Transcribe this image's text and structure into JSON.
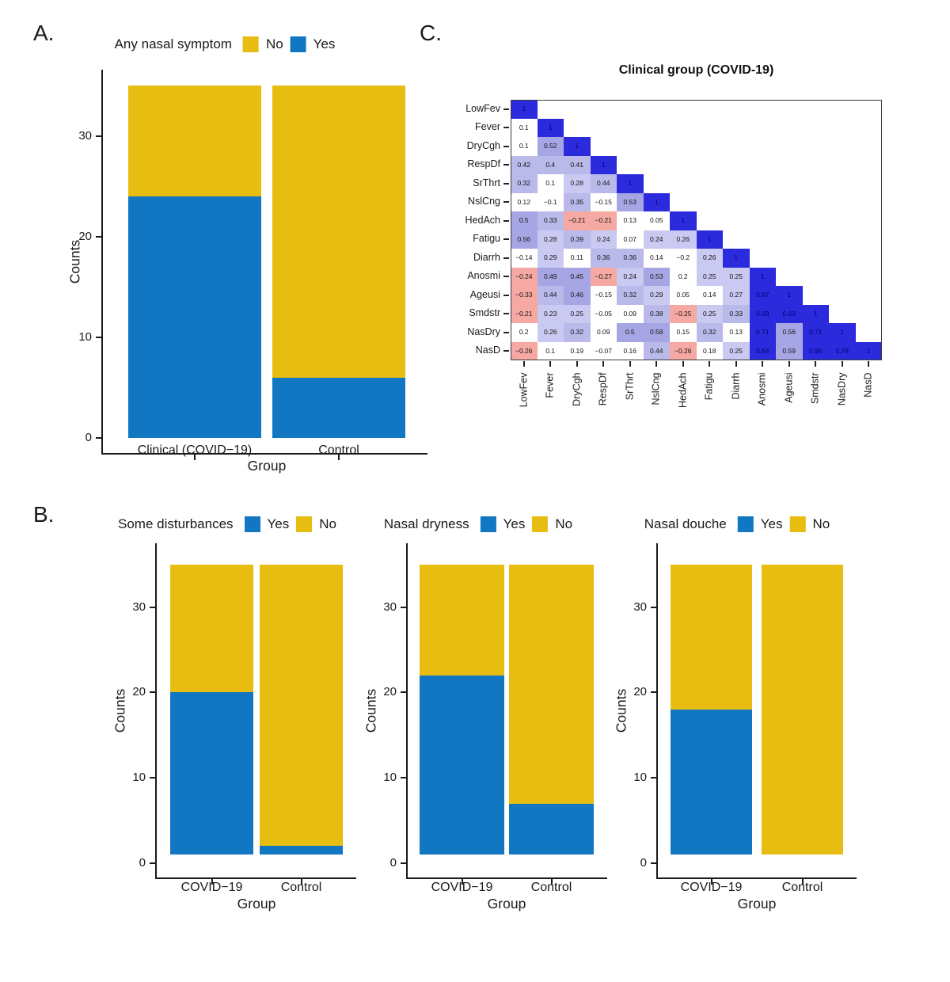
{
  "figure_background": "#ffffff",
  "colors": {
    "yes_blue": "#1277C3",
    "no_yellow": "#E7BD11"
  },
  "chart_data": [
    {
      "id": "panel_a",
      "panel_label": "A.",
      "type": "bar",
      "stacked": true,
      "legend_title": "Any nasal symptom",
      "legend": [
        {
          "label": "No",
          "color": "#E7BD11"
        },
        {
          "label": "Yes",
          "color": "#1277C3"
        }
      ],
      "xlabel": "Group",
      "ylabel": "Counts",
      "yticks": [
        0,
        10,
        20,
        30
      ],
      "ylim": [
        0,
        36.5
      ],
      "categories": [
        "Clinical (COVID−19)",
        "Control"
      ],
      "bars": [
        {
          "category": "Clinical (COVID−19)",
          "segments": [
            {
              "name": "Yes",
              "from": 0,
              "to": 24
            },
            {
              "name": "No",
              "from": 24,
              "to": 35
            }
          ]
        },
        {
          "category": "Control",
          "segments": [
            {
              "name": "Yes",
              "from": 0,
              "to": 6
            },
            {
              "name": "No",
              "from": 6,
              "to": 35
            }
          ]
        }
      ]
    },
    {
      "id": "panel_b1",
      "panel_label": "B.",
      "type": "bar",
      "stacked": true,
      "legend_title": "Some disturbances",
      "legend": [
        {
          "label": "Yes",
          "color": "#1277C3"
        },
        {
          "label": "No",
          "color": "#E7BD11"
        }
      ],
      "xlabel": "Group",
      "ylabel": "Counts",
      "yticks": [
        0,
        10,
        20,
        30
      ],
      "ylim": [
        0,
        36.5
      ],
      "categories": [
        "COVID−19",
        "Control"
      ],
      "bars": [
        {
          "category": "COVID−19",
          "segments": [
            {
              "name": "Yes",
              "from": 1,
              "to": 20
            },
            {
              "name": "No",
              "from": 20,
              "to": 35
            }
          ]
        },
        {
          "category": "Control",
          "segments": [
            {
              "name": "Yes",
              "from": 1,
              "to": 2
            },
            {
              "name": "No",
              "from": 2,
              "to": 35
            }
          ]
        }
      ]
    },
    {
      "id": "panel_b2",
      "panel_label": "",
      "type": "bar",
      "stacked": true,
      "legend_title": "Nasal dryness",
      "legend": [
        {
          "label": "Yes",
          "color": "#1277C3"
        },
        {
          "label": "No",
          "color": "#E7BD11"
        }
      ],
      "xlabel": "Group",
      "ylabel": "Counts",
      "yticks": [
        0,
        10,
        20,
        30
      ],
      "ylim": [
        0,
        36.5
      ],
      "categories": [
        "COVID−19",
        "Control"
      ],
      "bars": [
        {
          "category": "COVID−19",
          "segments": [
            {
              "name": "Yes",
              "from": 1,
              "to": 22
            },
            {
              "name": "No",
              "from": 22,
              "to": 35
            }
          ]
        },
        {
          "category": "Control",
          "segments": [
            {
              "name": "Yes",
              "from": 1,
              "to": 7
            },
            {
              "name": "No",
              "from": 7,
              "to": 35
            }
          ]
        }
      ]
    },
    {
      "id": "panel_b3",
      "panel_label": "",
      "type": "bar",
      "stacked": true,
      "legend_title": "Nasal douche",
      "legend": [
        {
          "label": "Yes",
          "color": "#1277C3"
        },
        {
          "label": "No",
          "color": "#E7BD11"
        }
      ],
      "xlabel": "Group",
      "ylabel": "Counts",
      "yticks": [
        0,
        10,
        20,
        30
      ],
      "ylim": [
        0,
        36.5
      ],
      "categories": [
        "COVID−19",
        "Control"
      ],
      "bars": [
        {
          "category": "COVID−19",
          "segments": [
            {
              "name": "Yes",
              "from": 1,
              "to": 18
            },
            {
              "name": "No",
              "from": 18,
              "to": 35
            }
          ]
        },
        {
          "category": "Control",
          "segments": [
            {
              "name": "No",
              "from": 1,
              "to": 35
            }
          ]
        }
      ]
    },
    {
      "id": "panel_c",
      "panel_label": "C.",
      "type": "heatmap",
      "title": "Clinical group (COVID-19)",
      "variables": [
        "LowFev",
        "Fever",
        "DryCgh",
        "RespDf",
        "SrThrt",
        "NslCng",
        "HedAch",
        "Fatigu",
        "Diarrh",
        "Anosmi",
        "Ageusi",
        "Smdstr",
        "NasDry",
        "NasD"
      ],
      "lower_triangle": [
        [
          1
        ],
        [
          0.1,
          1
        ],
        [
          0.1,
          0.52,
          1
        ],
        [
          0.42,
          0.4,
          0.41,
          1
        ],
        [
          0.32,
          0.1,
          0.28,
          0.44,
          1
        ],
        [
          0.12,
          -0.1,
          0.35,
          -0.15,
          0.53,
          1
        ],
        [
          0.5,
          0.33,
          -0.21,
          -0.21,
          0.13,
          0.05,
          1
        ],
        [
          0.56,
          0.28,
          0.39,
          0.24,
          0.07,
          0.24,
          0.26,
          1
        ],
        [
          -0.14,
          0.29,
          0.11,
          0.36,
          0.36,
          0.14,
          -0.2,
          0.26,
          1
        ],
        [
          -0.24,
          0.49,
          0.45,
          -0.27,
          0.24,
          0.53,
          0.2,
          0.25,
          0.25,
          1
        ],
        [
          -0.33,
          0.44,
          0.46,
          -0.15,
          0.32,
          0.29,
          0.05,
          0.14,
          0.27,
          0.87,
          1
        ],
        [
          -0.21,
          0.23,
          0.25,
          -0.05,
          0.09,
          0.38,
          -0.25,
          0.25,
          0.33,
          0.69,
          0.63,
          1
        ],
        [
          0.2,
          0.26,
          0.32,
          0.09,
          0.5,
          0.58,
          0.15,
          0.32,
          0.13,
          0.71,
          0.56,
          0.71,
          1
        ],
        [
          -0.26,
          0.1,
          0.19,
          -0.07,
          0.16,
          0.44,
          -0.26,
          0.18,
          0.25,
          0.64,
          0.59,
          0.96,
          0.78,
          1
        ]
      ],
      "colorscale": {
        "strong_blue": "#2B2BDD",
        "mid_blue": "#A6A6E4",
        "light_blue": "#B9B9EA",
        "very_light_blue": "#C9C9F1",
        "white": "#FFFFFF",
        "pink": "#F5A9A2"
      }
    }
  ]
}
